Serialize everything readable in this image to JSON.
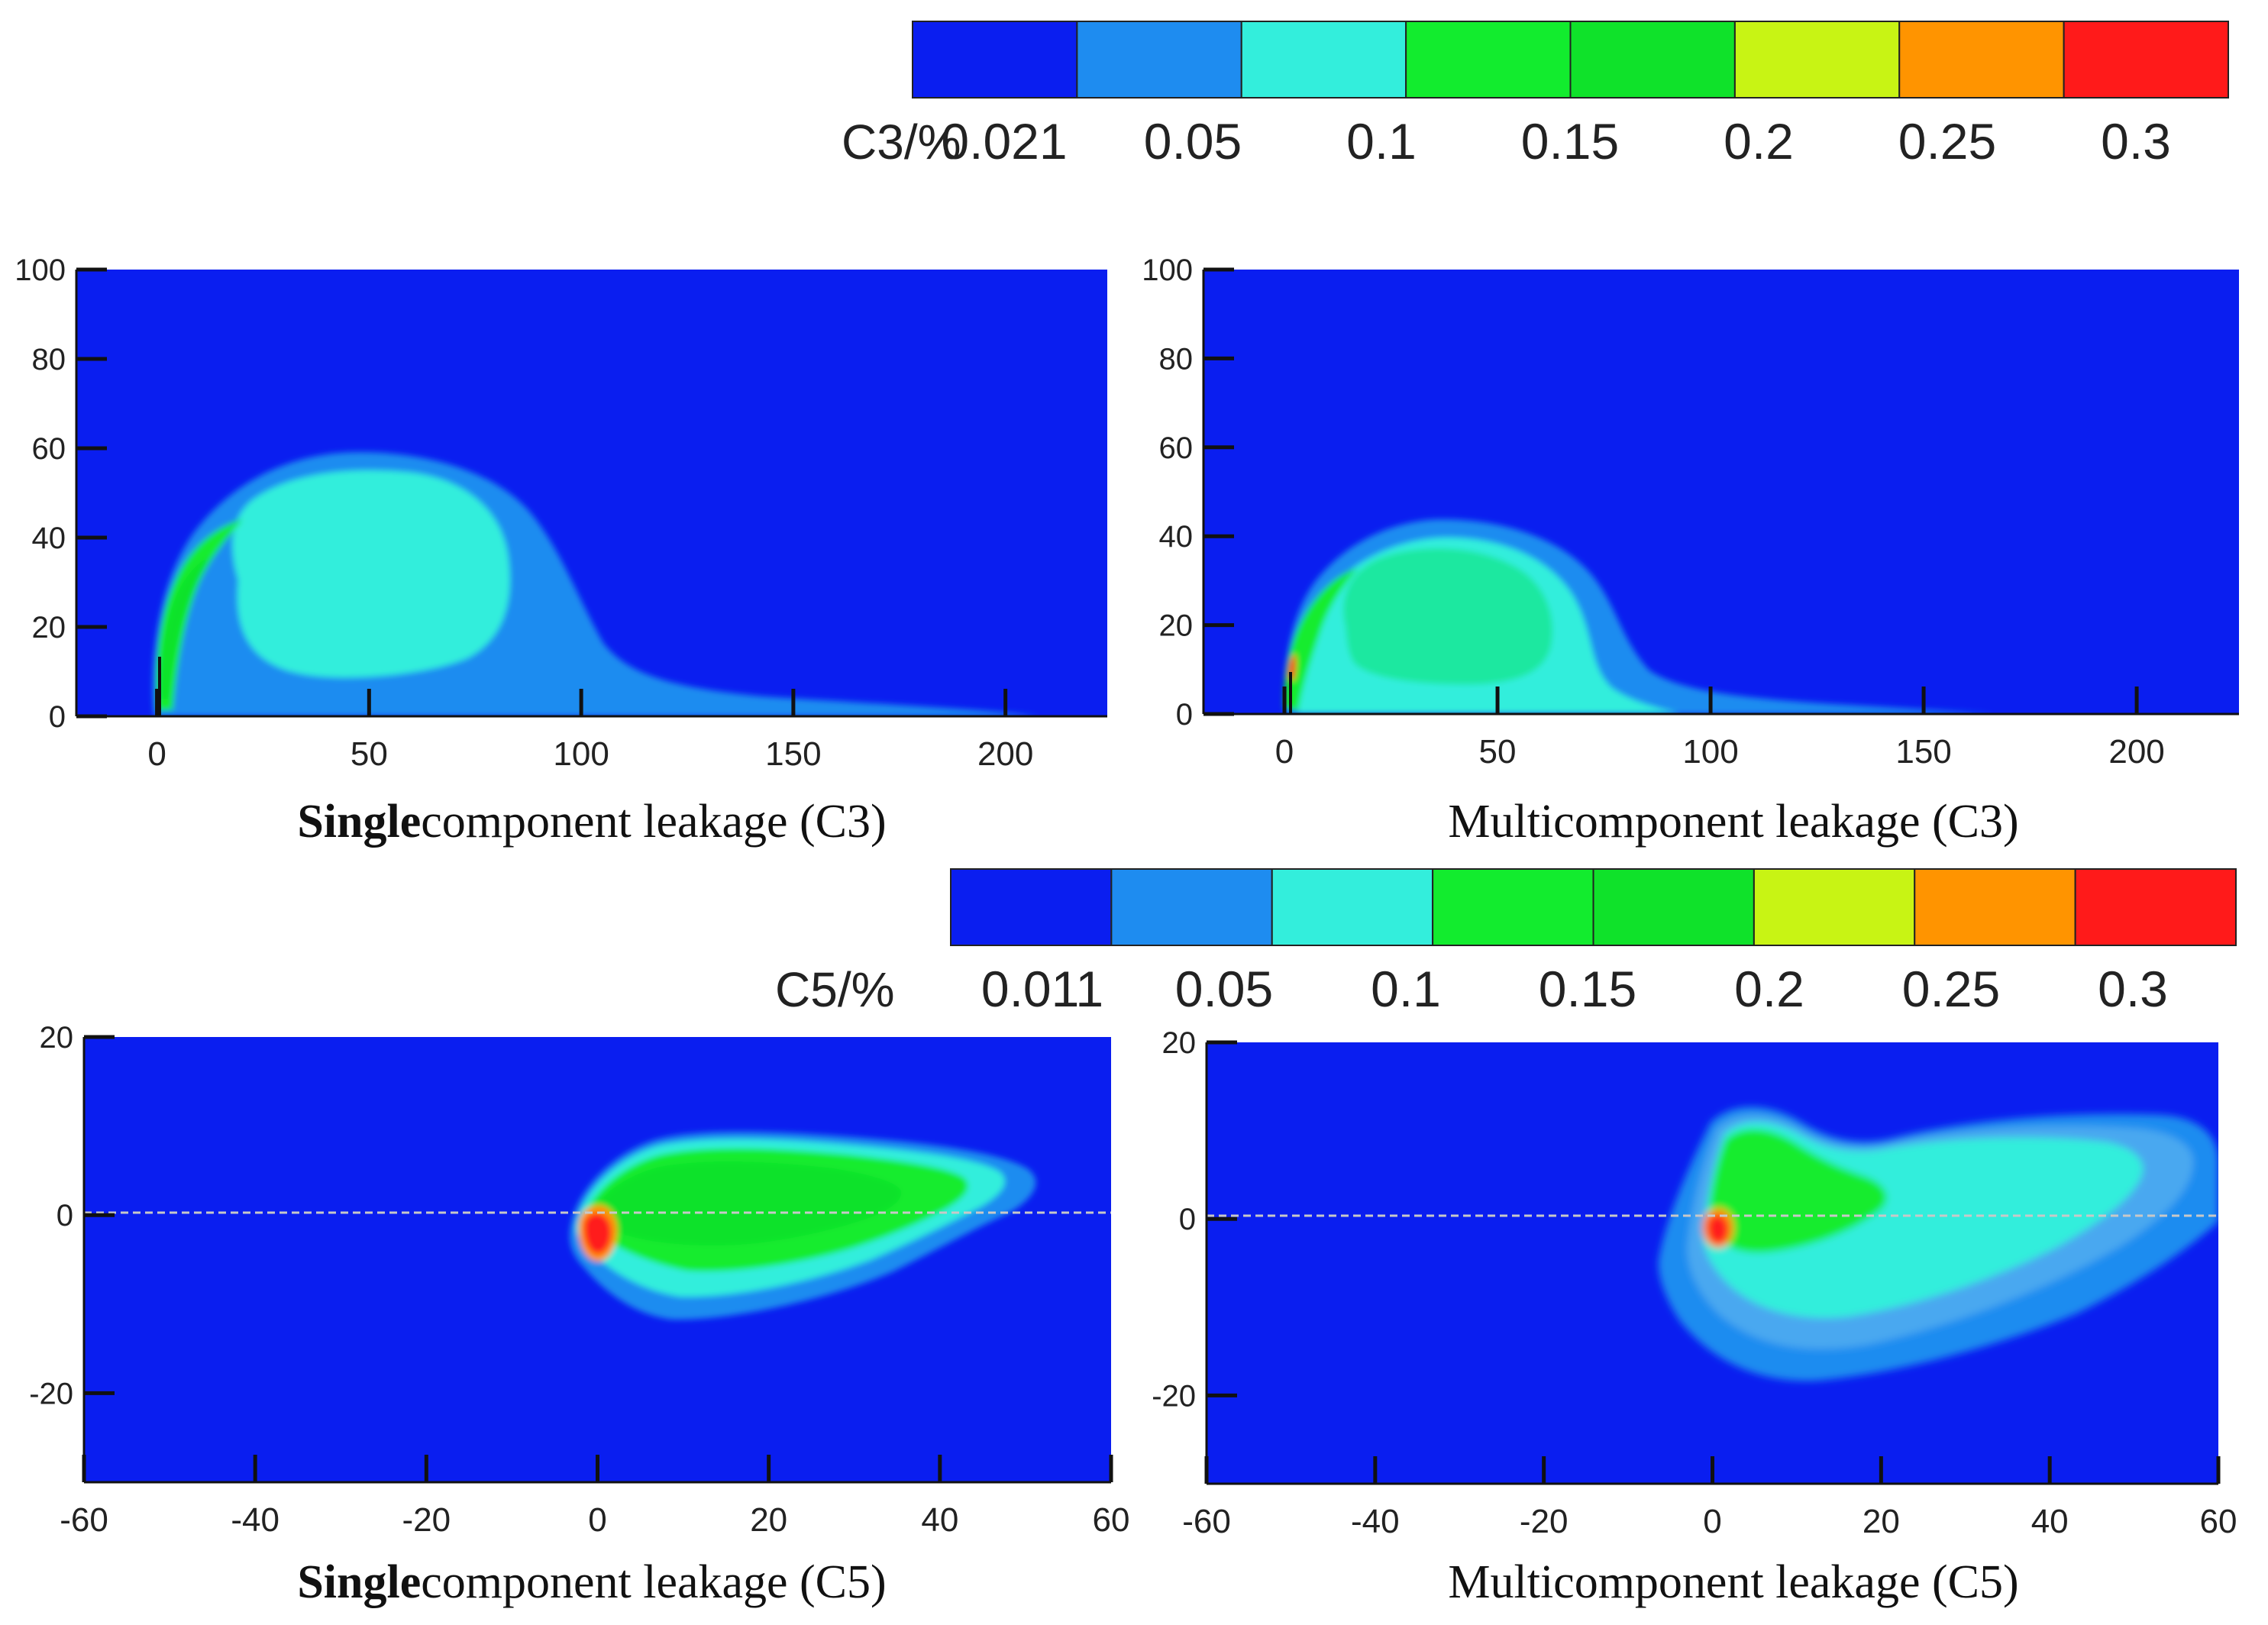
{
  "colors": {
    "bands": [
      "#0a1ef0",
      "#1e8cf0",
      "#33eedc",
      "#12ec2e",
      "#0fe22a",
      "#c8f414",
      "#ff9400",
      "#ff1a1a"
    ],
    "background": "#0a1ef0",
    "axis": "#111111",
    "dashed_line": "#c8c8c8"
  },
  "chart_data": [
    {
      "id": "colorbar-c3",
      "type": "colorbar",
      "title": "C3/%",
      "tick_labels": [
        "0.021",
        "0.05",
        "0.1",
        "0.15",
        "0.2",
        "0.25",
        "0.3"
      ],
      "levels": [
        0.021,
        0.05,
        0.1,
        0.125,
        0.15,
        0.2,
        0.25,
        0.3
      ]
    },
    {
      "id": "single-c3",
      "type": "heatmap",
      "caption_bold": "Single",
      "caption_rest": "component leakage (C3)",
      "x_ticks": [
        "0",
        "50",
        "100",
        "150",
        "200"
      ],
      "y_ticks": [
        "0",
        "20",
        "40",
        "60",
        "80",
        "100"
      ],
      "xlim": [
        -19,
        224
      ],
      "ylim": [
        0,
        100
      ]
    },
    {
      "id": "multi-c3",
      "type": "heatmap",
      "caption_bold": "",
      "caption_rest": "Multicomponent leakage (C3)",
      "x_ticks": [
        "0",
        "50",
        "100",
        "150",
        "200"
      ],
      "y_ticks": [
        "0",
        "20",
        "40",
        "60",
        "80",
        "100"
      ],
      "xlim": [
        -19,
        224
      ],
      "ylim": [
        0,
        100
      ]
    },
    {
      "id": "colorbar-c5",
      "type": "colorbar",
      "title": "C5/%",
      "tick_labels": [
        "0.011",
        "0.05",
        "0.1",
        "0.15",
        "0.2",
        "0.25",
        "0.3"
      ],
      "levels": [
        0.011,
        0.05,
        0.1,
        0.125,
        0.15,
        0.2,
        0.25,
        0.3
      ]
    },
    {
      "id": "single-c5",
      "type": "heatmap",
      "caption_bold": "Single",
      "caption_rest": "component leakage (C5)",
      "x_ticks": [
        "-60",
        "-40",
        "-20",
        "0",
        "20",
        "40",
        "60"
      ],
      "y_ticks": [
        "-20",
        "0",
        "20"
      ],
      "xlim": [
        -60,
        60
      ],
      "ylim": [
        -30,
        20
      ]
    },
    {
      "id": "multi-c5",
      "type": "heatmap",
      "caption_bold": "",
      "caption_rest": "Multicomponent leakage (C5)",
      "x_ticks": [
        "-60",
        "-40",
        "-20",
        "0",
        "20",
        "40",
        "60"
      ],
      "y_ticks": [
        "-20",
        "0",
        "20"
      ],
      "xlim": [
        -60,
        60
      ],
      "ylim": [
        -30,
        20
      ]
    }
  ]
}
